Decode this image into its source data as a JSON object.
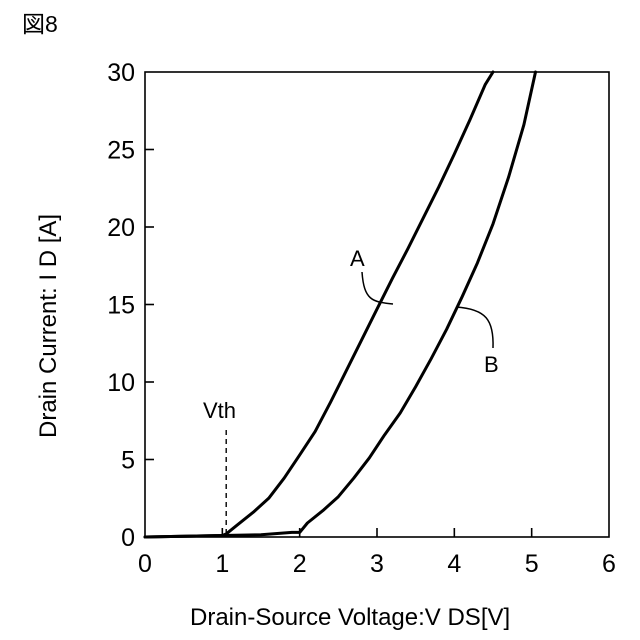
{
  "figure_label": "図8",
  "chart_data": {
    "type": "line",
    "title": "",
    "xlabel": "Drain-Source Voltage:V DS[V]",
    "ylabel": "Drain Current: I D [A]",
    "xlim": [
      0,
      6
    ],
    "ylim": [
      0,
      30
    ],
    "x_ticks": [
      0,
      1,
      2,
      3,
      4,
      5,
      6
    ],
    "y_ticks": [
      0,
      5,
      10,
      15,
      20,
      25,
      30
    ],
    "grid": false,
    "series": [
      {
        "name": "A",
        "x": [
          0,
          0.5,
          1.0,
          1.05,
          1.2,
          1.4,
          1.6,
          1.8,
          2.0,
          2.2,
          2.4,
          2.6,
          2.8,
          3.0,
          3.2,
          3.4,
          3.6,
          3.8,
          4.0,
          4.2,
          4.4,
          4.5
        ],
        "y": [
          0,
          0.05,
          0.1,
          0.2,
          0.8,
          1.6,
          2.5,
          3.8,
          5.3,
          6.8,
          8.7,
          10.7,
          12.7,
          14.7,
          16.7,
          18.6,
          20.6,
          22.6,
          24.7,
          26.9,
          29.2,
          30
        ]
      },
      {
        "name": "B",
        "x": [
          0,
          0.5,
          1.0,
          1.5,
          1.9,
          2.0,
          2.1,
          2.3,
          2.5,
          2.7,
          2.9,
          3.1,
          3.3,
          3.5,
          3.7,
          3.9,
          4.1,
          4.3,
          4.5,
          4.7,
          4.9,
          5.05
        ],
        "y": [
          0,
          0.05,
          0.1,
          0.15,
          0.3,
          0.3,
          0.9,
          1.7,
          2.6,
          3.8,
          5.1,
          6.6,
          8.0,
          9.7,
          11.5,
          13.4,
          15.5,
          17.7,
          20.2,
          23.2,
          26.6,
          30
        ]
      }
    ],
    "annotations": [
      {
        "text": "Vth",
        "x": 1.05
      },
      {
        "text": "A",
        "series": "A"
      },
      {
        "text": "B",
        "series": "B"
      }
    ]
  }
}
